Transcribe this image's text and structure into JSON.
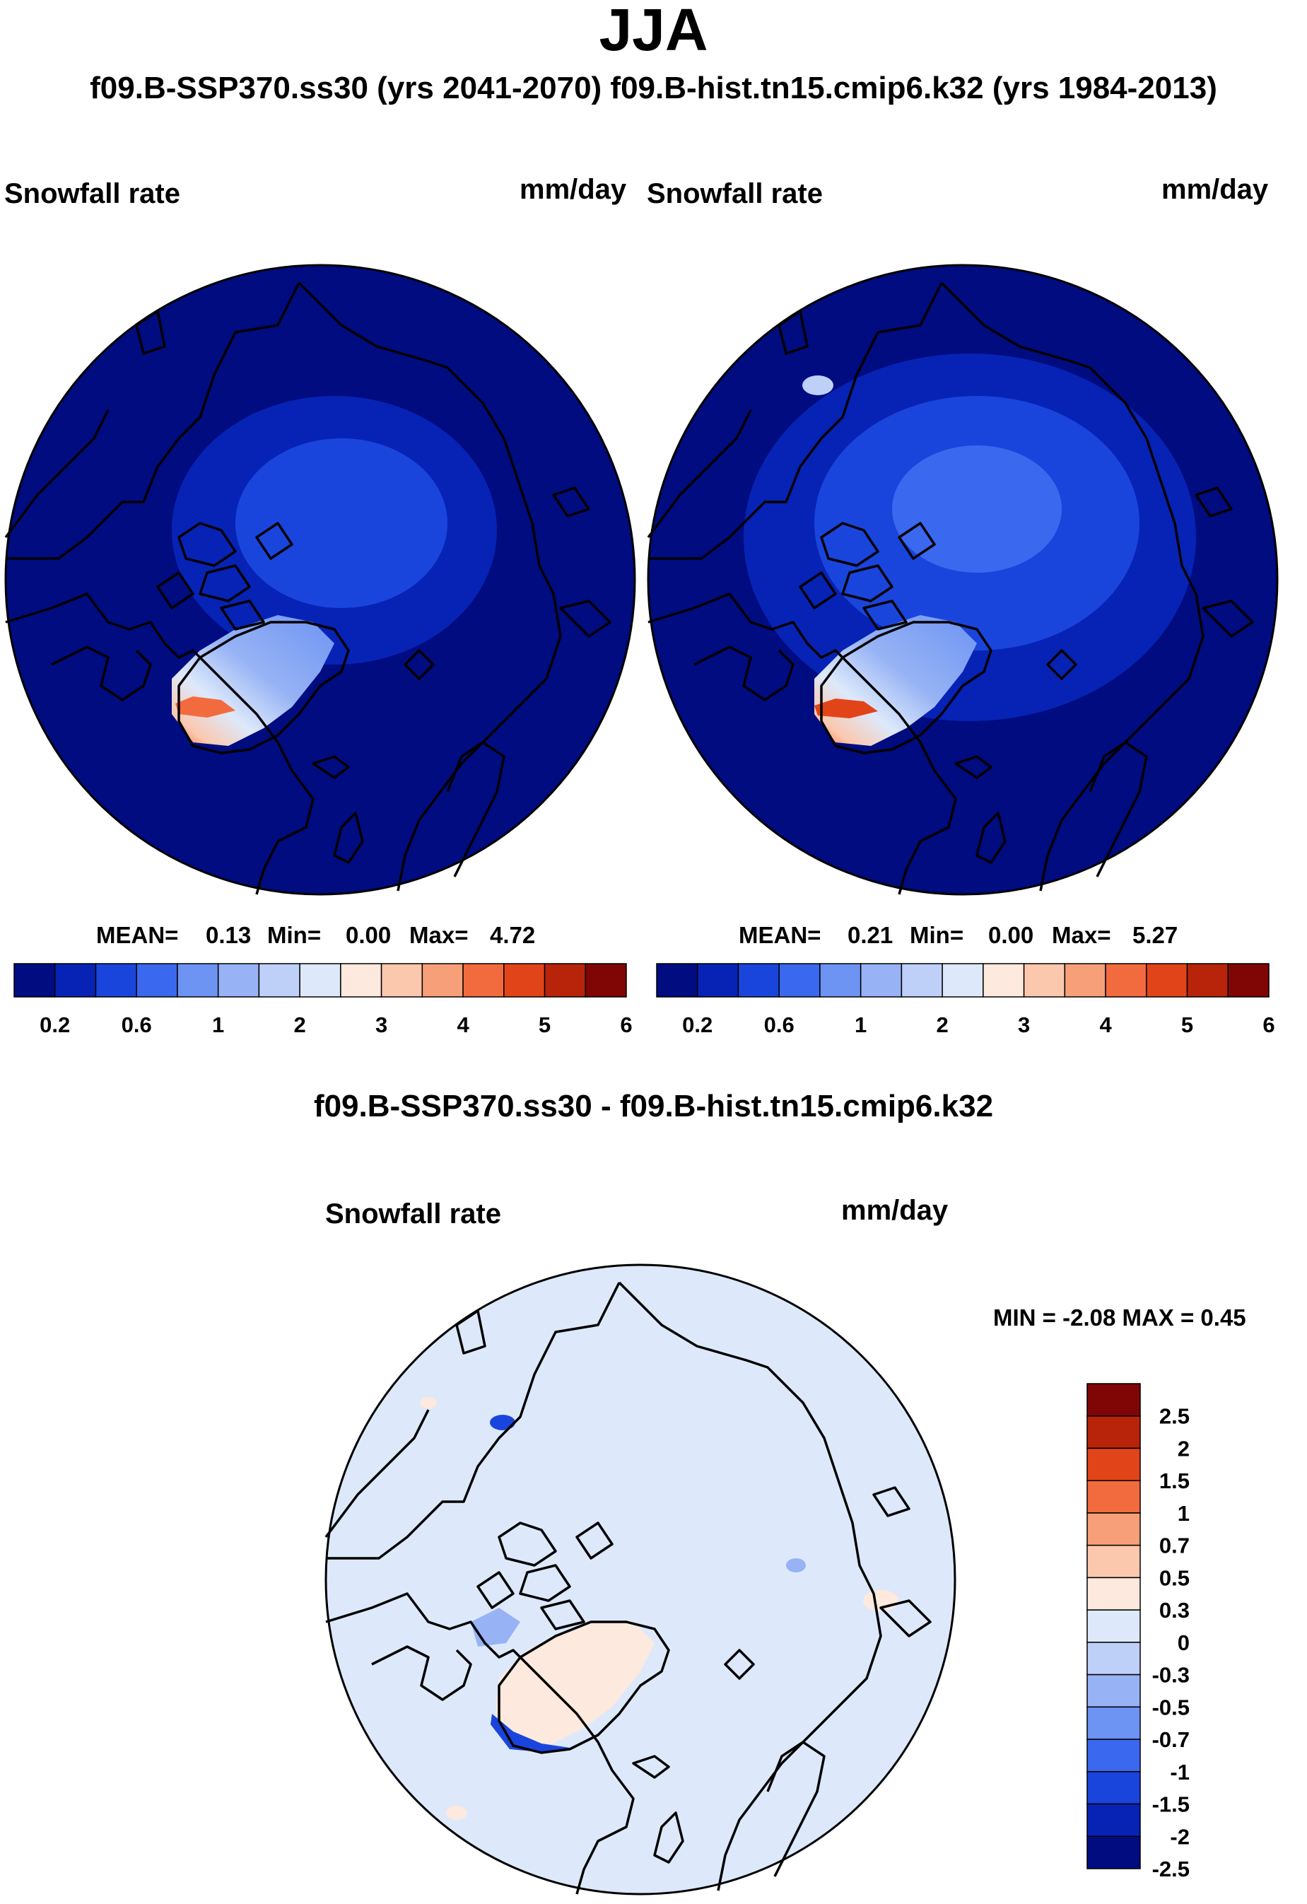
{
  "figure": {
    "season": "JJA",
    "subtitle": "f09.B-SSP370.ss30 (yrs 2041-2070)  f09.B-hist.tn15.cmip6.k32 (yrs 1984-2013)",
    "diff_title": "f09.B-SSP370.ss30 - f09.B-hist.tn15.cmip6.k32"
  },
  "panels": [
    {
      "variable": "Snowfall rate",
      "units": "mm/day",
      "mean_label": "MEAN=",
      "mean": "0.13",
      "min_label": "Min=",
      "min": "0.00",
      "max_label": "Max=",
      "max": "4.72"
    },
    {
      "variable": "Snowfall rate",
      "units": "mm/day",
      "mean_label": "MEAN=",
      "mean": "0.21",
      "min_label": "Min=",
      "min": "0.00",
      "max_label": "Max=",
      "max": "5.27"
    }
  ],
  "diff_panel": {
    "variable": "Snowfall rate",
    "units": "mm/day",
    "minmax": "MIN =  -2.08 MAX =   0.45"
  },
  "colorbars": {
    "abs": {
      "colors": [
        "#000c80",
        "#0723b5",
        "#1a45dc",
        "#3a69f0",
        "#6d93f3",
        "#97b3f5",
        "#bed0f8",
        "#dde9fb",
        "#fde9dd",
        "#fbc8ae",
        "#f79f79",
        "#f26b3f",
        "#e2441a",
        "#b7240a",
        "#7f0605"
      ],
      "labels": [
        "0.2",
        "0.6",
        "1",
        "2",
        "3",
        "4",
        "5",
        "6"
      ]
    },
    "diff": {
      "colors": [
        "#000c80",
        "#0723b5",
        "#1a45dc",
        "#3a69f0",
        "#6d93f3",
        "#97b3f5",
        "#bed0f8",
        "#dde9fb",
        "#fde9dd",
        "#fbc8ae",
        "#f79f79",
        "#f26b3f",
        "#e2441a",
        "#b7240a",
        "#7f0605"
      ],
      "labels": [
        "-2.5",
        "-2",
        "-1.5",
        "-1",
        "-0.7",
        "-0.5",
        "-0.3",
        "0",
        "0.3",
        "0.5",
        "0.7",
        "1",
        "1.5",
        "2",
        "2.5"
      ]
    }
  },
  "colors": {
    "ocean_abs": "#000c80",
    "diff_background": "#dde9fb",
    "coastline": "#000000"
  }
}
